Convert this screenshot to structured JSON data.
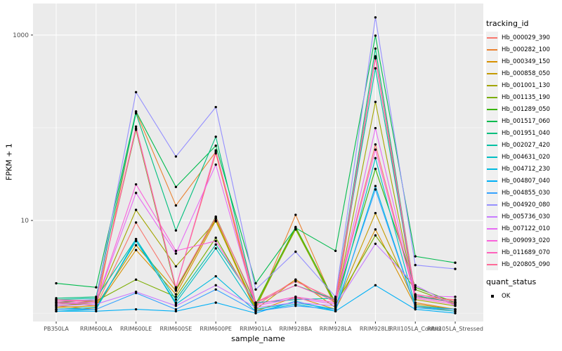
{
  "chart": {
    "type": "line",
    "xlabel": "sample_name",
    "ylabel": "FPKM + 1",
    "y_scale": "log10",
    "ylim_log": [
      -0.09,
      3.34
    ],
    "y_ticks": [
      {
        "label": "1000",
        "value": 1000
      },
      {
        "label": "10",
        "value": 10
      }
    ],
    "y_minor_values": [
      1,
      100
    ],
    "panel_bg": "#EBEBEB",
    "grid_color": "#FFFFFF",
    "point_color": "#000000",
    "tick_text_color": "#4D4D4D",
    "categories": [
      "PB350LA",
      "RRIM600LA",
      "RRIM600LE",
      "RRIM600SE",
      "RRIM600PE",
      "RRIM901LA",
      "RRIM928BA",
      "RRIM928LA",
      "RRIM928LE",
      "RRII105LA_Control",
      "RRII105LA_Stressed"
    ],
    "series": [
      {
        "id": "Hb_000029_390",
        "color": "#F8766D",
        "values": [
          1.3,
          1.2,
          9.5,
          1.9,
          53,
          1.2,
          2.3,
          1.3,
          66,
          1.5,
          1.4
        ]
      },
      {
        "id": "Hb_000282_100",
        "color": "#EA8331",
        "values": [
          1.2,
          1.1,
          148,
          14.5,
          55,
          1.1,
          11.5,
          1.2,
          575,
          1.3,
          1.1
        ]
      },
      {
        "id": "Hb_000349_150",
        "color": "#D89000",
        "values": [
          1.1,
          1.15,
          4.8,
          1.6,
          10,
          1.05,
          1.5,
          1.1,
          8,
          1.2,
          1.05
        ]
      },
      {
        "id": "Hb_000858_050",
        "color": "#C49A00",
        "values": [
          1.15,
          1.2,
          5.4,
          1.75,
          10.5,
          1.1,
          2.3,
          1.15,
          12,
          1.25,
          1.1
        ]
      },
      {
        "id": "Hb_001001_130",
        "color": "#A3A500",
        "values": [
          1.2,
          1.3,
          13,
          3.2,
          9.8,
          1.15,
          8.3,
          1.2,
          190,
          1.4,
          1.2
        ]
      },
      {
        "id": "Hb_001135_190",
        "color": "#7CAE00",
        "values": [
          1.25,
          1.35,
          2.3,
          1.5,
          6.5,
          1.2,
          8,
          1.25,
          6.9,
          1.8,
          1.25
        ]
      },
      {
        "id": "Hb_001289_050",
        "color": "#39B600",
        "values": [
          1.3,
          1.4,
          95,
          1.8,
          11,
          1.25,
          8.5,
          1.3,
          36,
          1.9,
          1.3
        ]
      },
      {
        "id": "Hb_001517_060",
        "color": "#00BB4E",
        "values": [
          2.1,
          1.9,
          150,
          23,
          64,
          2.1,
          8.3,
          4.7,
          985,
          4.1,
          3.5
        ]
      },
      {
        "id": "Hb_001951_040",
        "color": "#00BF7D",
        "values": [
          1.45,
          1.5,
          143,
          7.8,
          80,
          1.3,
          2.0,
          1.4,
          715,
          1.55,
          1.3
        ]
      },
      {
        "id": "Hb_002027_420",
        "color": "#00C1A3",
        "values": [
          1.4,
          1.45,
          6.3,
          1.4,
          5.5,
          1.3,
          1.4,
          1.45,
          437,
          1.5,
          1.3
        ]
      },
      {
        "id": "Hb_004631_020",
        "color": "#00BFC4",
        "values": [
          1.1,
          1.15,
          6.0,
          1.3,
          5.0,
          1.1,
          1.3,
          1.1,
          47,
          1.2,
          1.1
        ]
      },
      {
        "id": "Hb_004712_230",
        "color": "#00BAE0",
        "values": [
          1.05,
          1.1,
          6.3,
          1.25,
          2.5,
          1.05,
          1.25,
          1.05,
          23.5,
          1.15,
          1.05
        ]
      },
      {
        "id": "Hb_004807_040",
        "color": "#00B0F6",
        "values": [
          1.05,
          1.05,
          1.1,
          1.05,
          1.3,
          1.0,
          1.35,
          1.05,
          2.0,
          1.1,
          1.0
        ]
      },
      {
        "id": "Hb_004855_030",
        "color": "#35A2FF",
        "values": [
          1.1,
          1.1,
          1.65,
          1.1,
          1.8,
          1.05,
          1.2,
          1.1,
          21.6,
          1.15,
          1.1
        ]
      },
      {
        "id": "Hb_004920_080",
        "color": "#9590FF",
        "values": [
          1.35,
          1.4,
          242,
          49,
          167,
          1.8,
          4.6,
          1.5,
          1550,
          3.3,
          3.0
        ]
      },
      {
        "id": "Hb_005736_030",
        "color": "#C77CFF",
        "values": [
          1.2,
          1.25,
          1.7,
          1.2,
          2.0,
          1.15,
          1.3,
          1.2,
          5.6,
          2.0,
          1.2
        ]
      },
      {
        "id": "Hb_007122_010",
        "color": "#E76BF3",
        "values": [
          1.25,
          1.3,
          19.8,
          4.4,
          40,
          1.2,
          1.45,
          1.25,
          99,
          1.55,
          1.5
        ]
      },
      {
        "id": "Hb_009093_020",
        "color": "#FA62DB",
        "values": [
          1.3,
          1.3,
          24.5,
          4.7,
          6.0,
          1.25,
          1.5,
          1.3,
          58,
          1.45,
          1.25
        ]
      },
      {
        "id": "Hb_011689_070",
        "color": "#FF62BC",
        "values": [
          1.35,
          1.35,
          103,
          1.9,
          57,
          1.3,
          2.0,
          1.35,
          560,
          1.5,
          1.3
        ]
      },
      {
        "id": "Hb_020805_090",
        "color": "#FF6A98",
        "values": [
          1.4,
          1.35,
          98,
          1.85,
          10.8,
          1.3,
          2.2,
          1.4,
          590,
          1.6,
          1.35
        ]
      }
    ]
  },
  "chart_data": {
    "type": "line",
    "title": "",
    "xlabel": "sample_name",
    "ylabel": "FPKM + 1",
    "y_scale": "log10",
    "ylim": [
      0.8,
      2200
    ],
    "grid": true,
    "legend_position": "right",
    "categories": [
      "PB350LA",
      "RRIM600LA",
      "RRIM600LE",
      "RRIM600SE",
      "RRIM600PE",
      "RRIM901LA",
      "RRIM928BA",
      "RRIM928LA",
      "RRIM928LE",
      "RRII105LA_Control",
      "RRII105LA_Stressed"
    ],
    "series_note": "see chart.series for the 20 tracking_id series values (FPKM + 1, log scale)"
  },
  "legend": {
    "tracking_title": "tracking_id",
    "quant_title": "quant_status",
    "quant_items": [
      {
        "label": "OK"
      }
    ]
  }
}
